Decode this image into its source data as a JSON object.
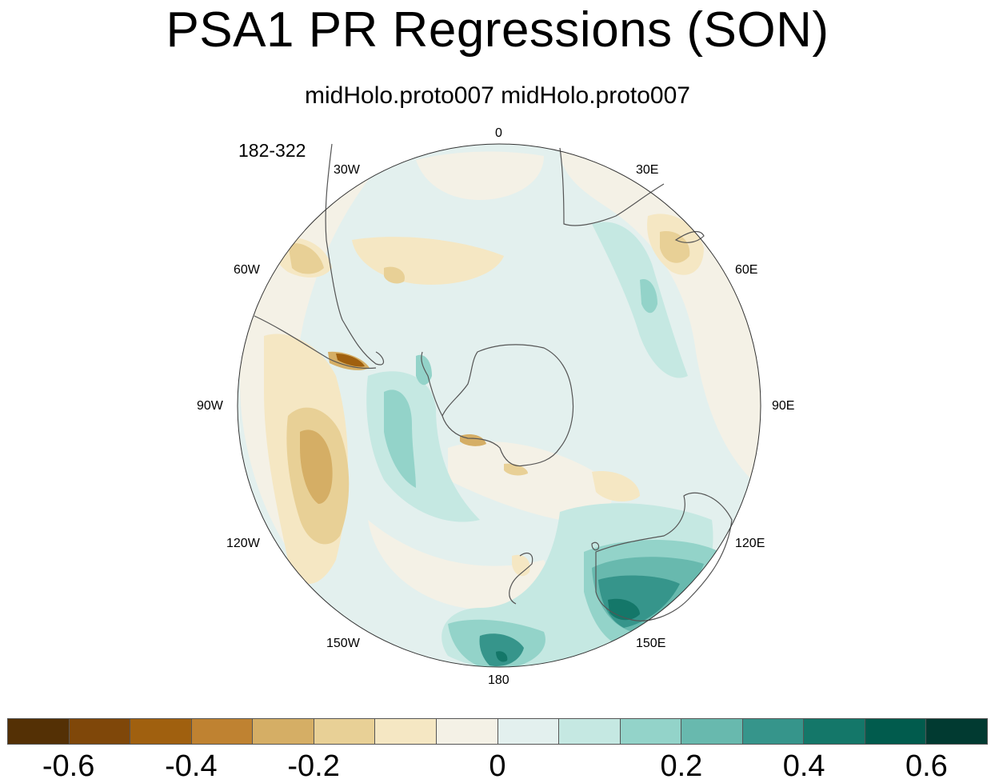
{
  "title": "PSA1 PR Regressions (SON)",
  "subtitle": "midHolo.proto007  midHolo.proto007",
  "period": "182-322",
  "longitude_labels": [
    {
      "lon": "0",
      "angle": 0
    },
    {
      "lon": "30E",
      "angle": 30
    },
    {
      "lon": "60E",
      "angle": 60
    },
    {
      "lon": "90E",
      "angle": 90
    },
    {
      "lon": "120E",
      "angle": 120
    },
    {
      "lon": "150E",
      "angle": 150
    },
    {
      "lon": "180",
      "angle": 180
    },
    {
      "lon": "150W",
      "angle": 210
    },
    {
      "lon": "120W",
      "angle": 240
    },
    {
      "lon": "90W",
      "angle": 270
    },
    {
      "lon": "60W",
      "angle": 300
    },
    {
      "lon": "30W",
      "angle": 330
    }
  ],
  "colorbar": {
    "colors": [
      "#543005",
      "#7f4709",
      "#a0600f",
      "#bf8231",
      "#d5ae65",
      "#e8d096",
      "#f5e7c3",
      "#f4f1e6",
      "#e3f0ee",
      "#c5e8e2",
      "#93d3c9",
      "#68b9ae",
      "#36958b",
      "#147769",
      "#015b4d",
      "#013a31"
    ],
    "tick_labels": [
      "-0.6",
      "-0.4",
      "-0.2",
      "0",
      "0.2",
      "0.4",
      "0.6"
    ],
    "tick_boundaries": [
      1,
      3,
      5,
      8,
      11,
      13,
      15
    ]
  },
  "colors": {
    "brown_dark": "#a0600f",
    "brown_mid": "#d5ae65",
    "brown_light": "#e8d096",
    "tan_faint": "#f5e7c3",
    "neutral_pos": "#f4f1e6",
    "neutral_neg": "#e3f0ee",
    "teal_light": "#c5e8e2",
    "teal_mid": "#93d3c9",
    "teal": "#68b9ae",
    "teal_dark": "#36958b",
    "teal_darker": "#147769"
  }
}
